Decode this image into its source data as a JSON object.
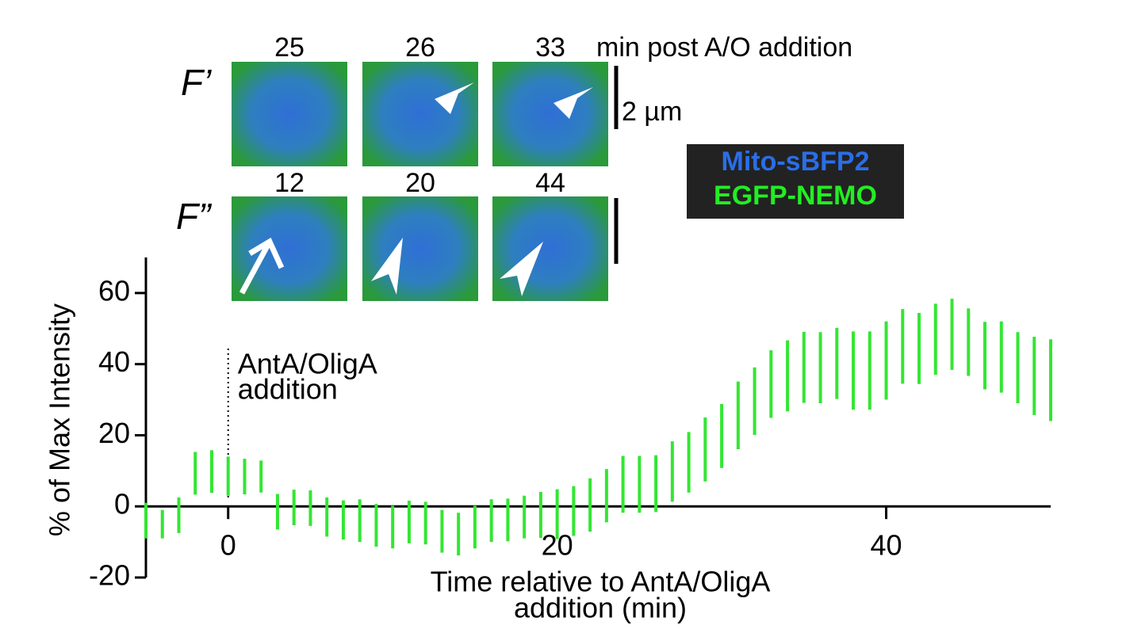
{
  "chart_data": {
    "type": "line",
    "xlabel": [
      "Time relative to AntA/OligA",
      "addition (min)"
    ],
    "ylabel": "% of Max Intensity",
    "annotation": [
      "AntA/OligA",
      "addition"
    ],
    "annotation_x": 0,
    "x": [
      -5,
      -4,
      -3,
      -2,
      -1,
      0,
      1,
      2,
      3,
      4,
      5,
      6,
      7,
      8,
      9,
      10,
      11,
      12,
      13,
      14,
      15,
      16,
      17,
      18,
      19,
      20,
      21,
      22,
      23,
      24,
      25,
      26,
      27,
      28,
      29,
      30,
      31,
      32,
      33,
      34,
      35,
      36,
      37,
      38,
      39,
      40,
      41,
      42,
      43,
      44,
      45,
      46,
      47,
      48,
      49,
      50
    ],
    "series": [
      {
        "name": "EGFP-NEMO",
        "color": "#33e633",
        "values": [
          -4,
          -5,
          -2.5,
          9.3,
          9.8,
          8.5,
          8.4,
          8.4,
          -1.5,
          -0.3,
          -0.5,
          -3,
          -3.8,
          -4,
          -5.3,
          -5.8,
          -4.4,
          -4.7,
          -7,
          -7.8,
          -5.8,
          -4,
          -3.8,
          -3,
          -2.4,
          -2.2,
          -1.3,
          0.4,
          3,
          6.2,
          6.2,
          6.4,
          9.8,
          12.4,
          16,
          19.8,
          25.6,
          29.6,
          34.4,
          36.7,
          39.1,
          39,
          40.2,
          38.2,
          38.2,
          41,
          45,
          44.4,
          47,
          48.4,
          46.2,
          42.4,
          42,
          39,
          36.7,
          35.5
        ],
        "errors": [
          5,
          4,
          5,
          6,
          6,
          5.5,
          5,
          4.5,
          5,
          5,
          5,
          5.5,
          5.5,
          6,
          6,
          6,
          6,
          6,
          6,
          6,
          6,
          6,
          6,
          6,
          6.5,
          7,
          7,
          7.5,
          7.5,
          8,
          8,
          8,
          8.5,
          8.5,
          9,
          9,
          9.5,
          9.5,
          9.5,
          10,
          10,
          10,
          10,
          11,
          11,
          11,
          10.5,
          10,
          10,
          10,
          9.5,
          9.5,
          10,
          10,
          11,
          11.5
        ]
      }
    ],
    "xlim": [
      -5,
      50
    ],
    "ylim": [
      -20,
      70
    ],
    "xticks": [
      0,
      20,
      40
    ],
    "yticks": [
      -20,
      0,
      20,
      40,
      60
    ]
  },
  "panels": {
    "row1_label": "F’",
    "row1_times": [
      "25",
      "26",
      "33"
    ],
    "time_unit": "min post A/O addition",
    "scale": "2 µm",
    "row2_label": "F”",
    "row2_times": [
      "12",
      "20",
      "44"
    ],
    "legend": [
      "Mito-sBFP2",
      "EGFP-NEMO"
    ]
  }
}
